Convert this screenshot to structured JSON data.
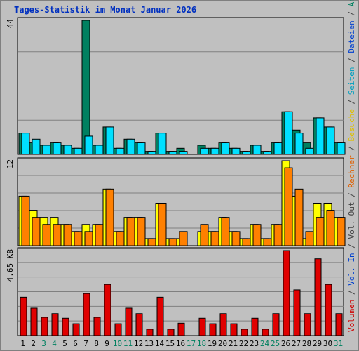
{
  "chart_data": {
    "type": "bar",
    "title": "Tages-Statistik im Monat Januar 2026",
    "categories": [
      "1",
      "2",
      "3",
      "4",
      "5",
      "6",
      "7",
      "8",
      "9",
      "10",
      "11",
      "12",
      "13",
      "14",
      "15",
      "16",
      "17",
      "18",
      "19",
      "20",
      "21",
      "22",
      "23",
      "24",
      "25",
      "26",
      "27",
      "28",
      "29",
      "30",
      "31"
    ],
    "weekend_days": [
      "3",
      "4",
      "10",
      "11",
      "17",
      "18",
      "24",
      "25",
      "31"
    ],
    "right_legend": [
      {
        "text": "Volumen",
        "color": "#d00000"
      },
      {
        "text": " / ",
        "color": "#404040"
      },
      {
        "text": "Vol. In",
        "color": "#0040d0"
      },
      {
        "text": " / ",
        "color": "#404040"
      },
      {
        "text": "Vol. Out",
        "color": "#404040"
      },
      {
        "text": " / ",
        "color": "#404040"
      },
      {
        "text": "Rechner",
        "color": "#e06000"
      },
      {
        "text": " / ",
        "color": "#404040"
      },
      {
        "text": "Besuche",
        "color": "#e0c000"
      },
      {
        "text": " / ",
        "color": "#404040"
      },
      {
        "text": "Seiten",
        "color": "#00a0c0"
      },
      {
        "text": " / ",
        "color": "#404040"
      },
      {
        "text": "Dateien",
        "color": "#0040d0"
      },
      {
        "text": " / ",
        "color": "#404040"
      },
      {
        "text": "Anfragen",
        "color": "#008060"
      }
    ],
    "panels": [
      {
        "id": "requests",
        "ymax_label": "44",
        "ymax": 44,
        "series": [
          {
            "name": "Anfragen",
            "color": "#008060",
            "values": [
              7,
              4,
              3,
              4,
              3,
              2,
              44,
              3,
              9,
              2,
              5,
              4,
              1,
              7,
              1,
              2,
              0,
              3,
              2,
              4,
              2,
              1,
              3,
              1,
              4,
              14,
              8,
              4,
              12,
              9,
              4
            ]
          },
          {
            "name": "Seiten",
            "color": "#00e0ff",
            "values": [
              7,
              5,
              3,
              4,
              3,
              2,
              6,
              3,
              9,
              2,
              5,
              4,
              1,
              7,
              1,
              1,
              0,
              2,
              2,
              4,
              2,
              1,
              3,
              1,
              4,
              14,
              7,
              2,
              12,
              9,
              4
            ]
          }
        ]
      },
      {
        "id": "visits",
        "ymax_label": "12",
        "ymax": 12,
        "series": [
          {
            "name": "Besuche",
            "color": "#ffff00",
            "values": [
              7,
              5,
              4,
              4,
              3,
              2,
              3,
              3,
              8,
              2,
              4,
              4,
              1,
              6,
              1,
              1,
              0,
              2,
              2,
              4,
              2,
              1,
              3,
              1,
              3,
              12,
              7,
              1,
              6,
              6,
              4
            ]
          },
          {
            "name": "Rechner",
            "color": "#ff8000",
            "values": [
              7,
              4,
              3,
              3,
              3,
              2,
              2,
              3,
              8,
              2,
              4,
              4,
              1,
              6,
              1,
              2,
              0,
              3,
              2,
              4,
              2,
              1,
              3,
              1,
              3,
              11,
              8,
              2,
              4,
              5,
              4
            ]
          }
        ]
      },
      {
        "id": "volume",
        "ymax_label": "4.65 KB",
        "ymax": 4.65,
        "series": [
          {
            "name": "Volumen",
            "color": "#e00000",
            "values": [
              2.1,
              1.5,
              1.0,
              1.2,
              0.95,
              0.65,
              2.3,
              1.0,
              2.8,
              0.65,
              1.5,
              1.2,
              0.35,
              2.1,
              0.35,
              0.68,
              0,
              0.95,
              0.65,
              1.2,
              0.65,
              0.35,
              0.95,
              0.35,
              1.2,
              4.65,
              2.5,
              1.2,
              4.2,
              2.8,
              1.2
            ]
          }
        ]
      }
    ]
  }
}
